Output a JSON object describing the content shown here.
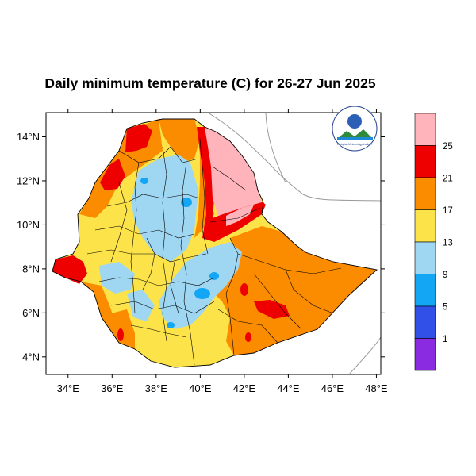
{
  "title": "Daily minimum temperature (C) for 26-27 Jun 2025",
  "map": {
    "lat_ticks": [
      "4°N",
      "6°N",
      "8°N",
      "10°N",
      "12°N",
      "14°N"
    ],
    "lon_ticks": [
      "34°E",
      "36°E",
      "38°E",
      "40°E",
      "42°E",
      "44°E",
      "46°E",
      "48°E"
    ],
    "lon_range": [
      33,
      48.2
    ],
    "lat_range": [
      3.2,
      15.1
    ]
  },
  "legend": {
    "bins": [
      {
        "color": "#8a2be2"
      },
      {
        "color": "#3050e8"
      },
      {
        "color": "#12a6f5"
      },
      {
        "color": "#9fd6f2"
      },
      {
        "color": "#fde34a"
      },
      {
        "color": "#fb8c00"
      },
      {
        "color": "#ee0000"
      },
      {
        "color": "#ffb4bc"
      }
    ],
    "labels": [
      "1",
      "5",
      "9",
      "13",
      "17",
      "21",
      "25"
    ]
  },
  "logo": {
    "caption": "Ethiopian Meteorology Institute"
  }
}
